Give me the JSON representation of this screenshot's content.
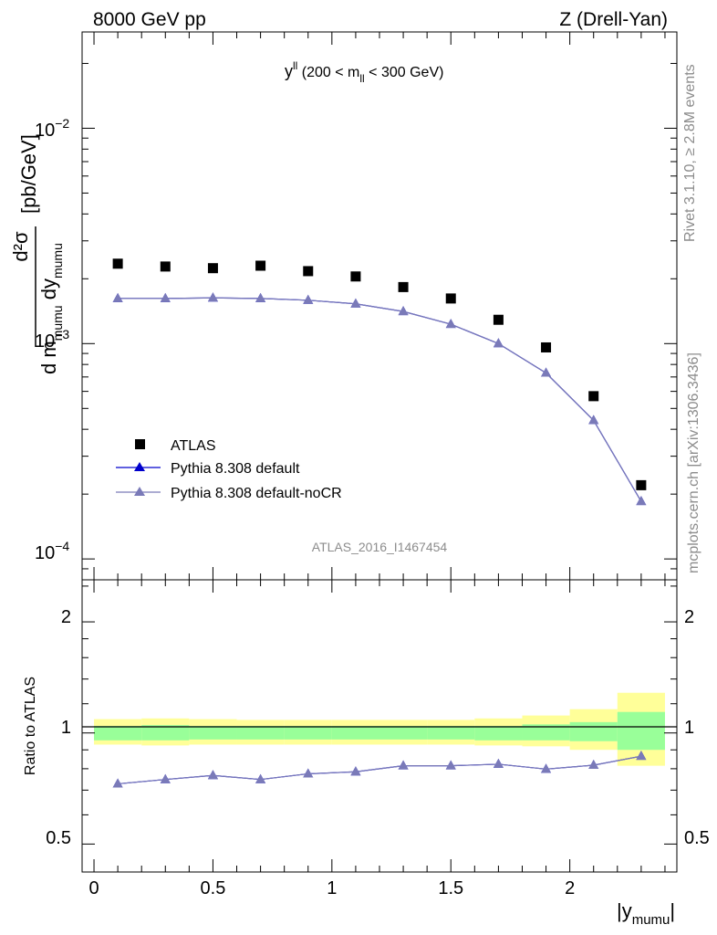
{
  "header": {
    "left": "8000 GeV pp",
    "right": "Z (Drell-Yan)"
  },
  "side_labels": {
    "rivet": "Rivet 3.1.10, ≥ 2.8M events",
    "mcplots": "mcplots.cern.ch [arXiv:1306.3436]"
  },
  "plot_title": {
    "main": "y",
    "main_sup": "ll",
    "range": " (200 < m",
    "range_sub": "ll",
    "range_end": " < 300 GeV)"
  },
  "analysis_id": "ATLAS_2016_I1467454",
  "axes": {
    "ylabel_top": {
      "num": "d²σ",
      "den_1": "d m",
      "den_sub1": "mumu",
      "den_2": " dy",
      "den_sub2": "mumu",
      "unit": "[pb/GeV]"
    },
    "ylabel_bottom": "Ratio to ATLAS",
    "xlabel_main": "|y",
    "xlabel_sub": "mumu",
    "xlabel_end": "|",
    "x_ticks": [
      "0",
      "0.5",
      "1",
      "1.5",
      "2"
    ],
    "y_ticks_top": [
      {
        "base": "10",
        "exp": "−2"
      },
      {
        "base": "10",
        "exp": "−3"
      },
      {
        "base": "10",
        "exp": "−4"
      }
    ],
    "y_ticks_bottom": [
      "2",
      "1",
      "0.5"
    ]
  },
  "legend": [
    {
      "label": "ATLAS",
      "marker": "square",
      "color": "#000000"
    },
    {
      "label": "Pythia 8.308 default",
      "marker": "triangle",
      "color": "#0000cc"
    },
    {
      "label": "Pythia 8.308 default-noCR",
      "marker": "triangle",
      "color": "#7a7ab8"
    }
  ],
  "chart_data": {
    "type": "scatter",
    "x_scale": "linear",
    "xlim": [
      -0.05,
      2.45
    ],
    "top_panel": {
      "y_scale": "log",
      "ylim": [
        8e-05,
        0.028
      ],
      "x": [
        0.1,
        0.3,
        0.5,
        0.7,
        0.9,
        1.1,
        1.3,
        1.5,
        1.7,
        1.9,
        2.1,
        2.3
      ],
      "series": [
        {
          "name": "ATLAS",
          "values": [
            0.00235,
            0.00228,
            0.00224,
            0.0023,
            0.00217,
            0.00205,
            0.00183,
            0.00162,
            0.00129,
            0.00096,
            0.00057,
            0.00022
          ]
        },
        {
          "name": "Pythia 8.308 default",
          "values": [
            0.00162,
            0.00162,
            0.00163,
            0.00162,
            0.00159,
            0.00153,
            0.00141,
            0.00123,
            0.001,
            0.00073,
            0.00044,
            0.000185
          ]
        },
        {
          "name": "Pythia 8.308 default-noCR",
          "values": [
            0.00162,
            0.00162,
            0.00163,
            0.00162,
            0.00159,
            0.00153,
            0.00141,
            0.00123,
            0.001,
            0.00073,
            0.00044,
            0.000185
          ]
        }
      ]
    },
    "ratio_panel": {
      "y_scale": "log",
      "ylim": [
        0.42,
        2.6
      ],
      "x": [
        0.1,
        0.3,
        0.5,
        0.7,
        0.9,
        1.1,
        1.3,
        1.5,
        1.7,
        1.9,
        2.1,
        2.3
      ],
      "series": [
        {
          "name": "Pythia 8.308 default",
          "values": [
            0.728,
            0.748,
            0.767,
            0.748,
            0.775,
            0.785,
            0.815,
            0.815,
            0.823,
            0.798,
            0.818,
            0.865
          ]
        },
        {
          "name": "Pythia 8.308 default-noCR",
          "values": [
            0.728,
            0.748,
            0.767,
            0.748,
            0.775,
            0.785,
            0.815,
            0.815,
            0.823,
            0.798,
            0.818,
            0.865
          ]
        }
      ],
      "bands": {
        "bin_edges": [
          0.0,
          0.2,
          0.4,
          0.6,
          0.8,
          1.0,
          1.2,
          1.4,
          1.6,
          1.8,
          2.0,
          2.2,
          2.4
        ],
        "inner": [
          [
            0.955,
            1.045
          ],
          [
            0.955,
            1.05
          ],
          [
            0.96,
            1.045
          ],
          [
            0.96,
            1.045
          ],
          [
            0.96,
            1.045
          ],
          [
            0.96,
            1.045
          ],
          [
            0.96,
            1.045
          ],
          [
            0.96,
            1.045
          ],
          [
            0.955,
            1.045
          ],
          [
            0.955,
            1.055
          ],
          [
            0.95,
            1.07
          ],
          [
            0.9,
            1.14
          ]
        ],
        "outer": [
          [
            0.93,
            1.09
          ],
          [
            0.925,
            1.095
          ],
          [
            0.93,
            1.09
          ],
          [
            0.93,
            1.085
          ],
          [
            0.93,
            1.085
          ],
          [
            0.93,
            1.085
          ],
          [
            0.93,
            1.085
          ],
          [
            0.93,
            1.085
          ],
          [
            0.925,
            1.095
          ],
          [
            0.92,
            1.115
          ],
          [
            0.9,
            1.16
          ],
          [
            0.815,
            1.285
          ]
        ],
        "inner_color": "#99ff99",
        "outer_color": "#ffff99"
      }
    }
  }
}
